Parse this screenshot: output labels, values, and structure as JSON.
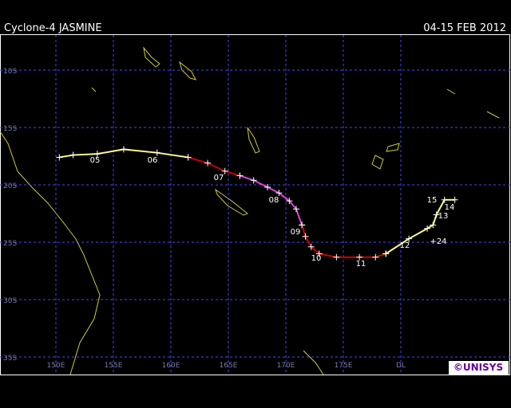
{
  "header": {
    "title": "Cyclone-4 JASMINE",
    "dates": "04-15 FEB 2012"
  },
  "map": {
    "lat_ticks": [
      {
        "value": -10,
        "label": "10S"
      },
      {
        "value": -15,
        "label": "15S"
      },
      {
        "value": -20,
        "label": "20S"
      },
      {
        "value": -25,
        "label": "25S"
      },
      {
        "value": -30,
        "label": "30S"
      },
      {
        "value": -35,
        "label": "35S"
      }
    ],
    "lon_ticks": [
      {
        "value": 150,
        "label": "150E"
      },
      {
        "value": 155,
        "label": "155E"
      },
      {
        "value": 160,
        "label": "160E"
      },
      {
        "value": 165,
        "label": "165E"
      },
      {
        "value": 170,
        "label": "170E"
      },
      {
        "value": 175,
        "label": "175E"
      },
      {
        "value": 180,
        "label": "DL"
      }
    ],
    "grid_color": "#4444ff",
    "track": [
      {
        "color": "#ffff80",
        "lon": [
          150.3,
          151.5,
          153.6,
          155.9,
          158.8,
          161.5
        ],
        "lat": [
          -17.6,
          -17.4,
          -17.3,
          -16.9,
          -17.2,
          -17.6
        ]
      },
      {
        "color": "#cc0000",
        "lon": [
          161.5,
          163.2,
          164.7,
          166.0
        ],
        "lat": [
          -17.6,
          -18.1,
          -18.8,
          -19.2
        ]
      },
      {
        "color": "#dd44dd",
        "lon": [
          166.0,
          167.2,
          168.4,
          169.4,
          170.3,
          170.9,
          171.4
        ],
        "lat": [
          -19.2,
          -19.6,
          -20.2,
          -20.7,
          -21.4,
          -22.1,
          -23.5
        ]
      },
      {
        "color": "#cc0000",
        "lon": [
          171.4,
          171.7,
          172.2,
          172.9,
          174.4,
          176.4,
          177.8,
          178.7
        ],
        "lat": [
          -23.5,
          -24.5,
          -25.4,
          -26.0,
          -26.3,
          -26.3,
          -26.3,
          -26.0
        ]
      },
      {
        "color": "#ffff80",
        "lon": [
          178.7,
          180.7,
          182.3,
          182.8,
          183.1,
          183.8,
          184.7
        ],
        "lat": [
          -26.0,
          -24.7,
          -23.8,
          -23.5,
          -22.6,
          -21.3,
          -21.3
        ]
      }
    ],
    "day_labels": [
      "05",
      "06",
      "07",
      "08",
      "09",
      "10",
      "11",
      "12",
      "13",
      "14",
      "15",
      "+24"
    ],
    "credit": "©UNISYS"
  }
}
